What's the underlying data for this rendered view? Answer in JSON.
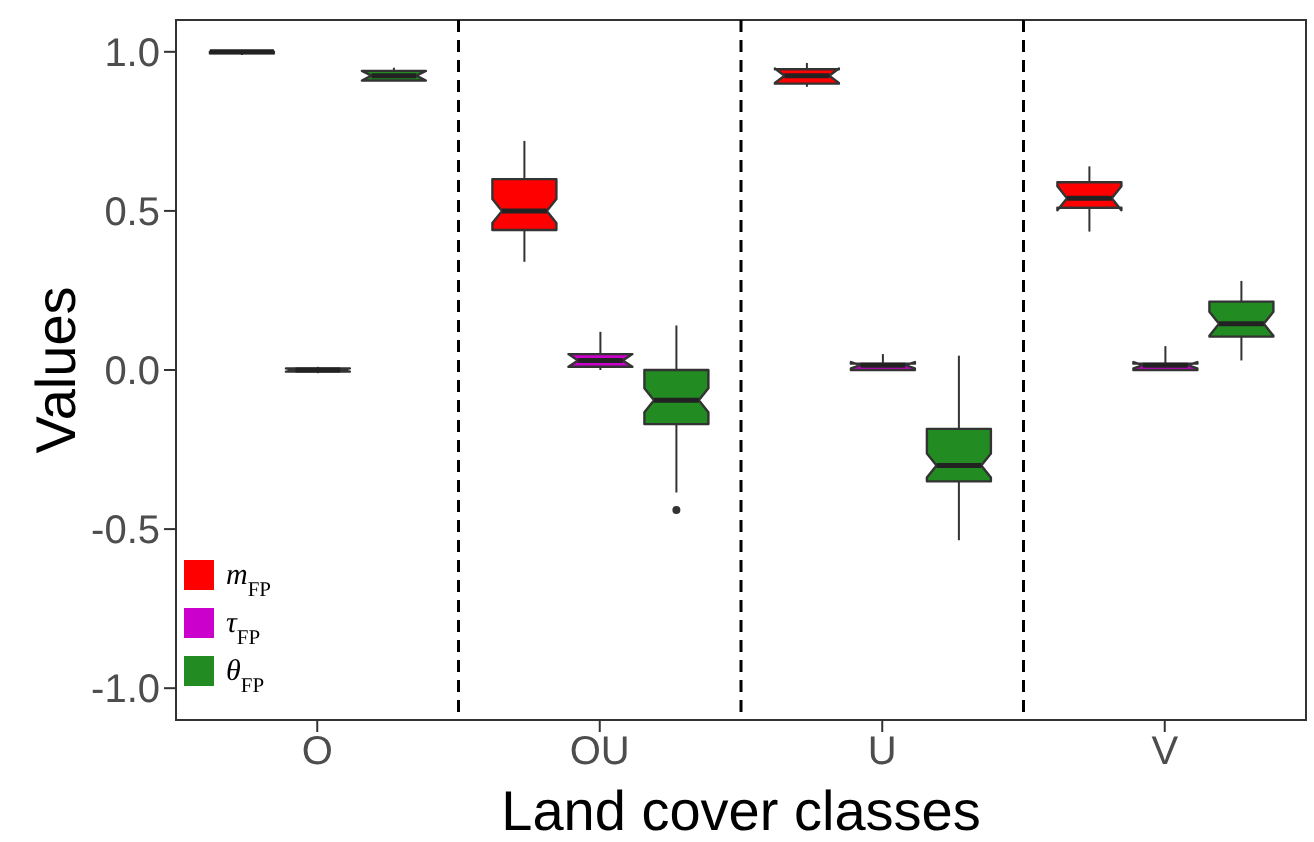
{
  "chart_data": {
    "type": "box",
    "xlabel": "Land cover classes",
    "ylabel": "Values",
    "categories": [
      "O",
      "OU",
      "U",
      "V"
    ],
    "ylim": [
      -1.1,
      1.1
    ],
    "yticks": [
      {
        "value": -1,
        "label": "-1.0"
      },
      {
        "value": -0.5,
        "label": "-0.5"
      },
      {
        "value": 0,
        "label": "0.0"
      },
      {
        "value": 0.5,
        "label": "0.5"
      },
      {
        "value": 1.0,
        "label": "1.0"
      }
    ],
    "grid": false,
    "legend": "bottom left",
    "series": [
      {
        "name": "m$_{FP}$",
        "color": "#ff0000",
        "boxes": [
          {
            "low": 0.99,
            "q1": 0.995,
            "median": 1.0,
            "q3": 1.0,
            "high": 1.0
          },
          {
            "low": 0.34,
            "q1": 0.44,
            "median": 0.5,
            "q3": 0.6,
            "high": 0.72
          },
          {
            "low": 0.89,
            "q1": 0.9,
            "median": 0.925,
            "q3": 0.945,
            "high": 0.965
          },
          {
            "low": 0.435,
            "q1": 0.51,
            "median": 0.54,
            "q3": 0.59,
            "high": 0.64
          }
        ]
      },
      {
        "name": "τ$_{FP}$",
        "color": "#cc00cc",
        "boxes": [
          {
            "low": -0.01,
            "q1": -0.005,
            "median": 0.0,
            "q3": 0.005,
            "high": 0.01
          },
          {
            "low": 0.0,
            "q1": 0.01,
            "median": 0.03,
            "q3": 0.05,
            "high": 0.12
          },
          {
            "low": 0.0,
            "q1": 0.0,
            "median": 0.015,
            "q3": 0.02,
            "high": 0.05
          },
          {
            "low": 0.0,
            "q1": 0.0,
            "median": 0.015,
            "q3": 0.02,
            "high": 0.075
          }
        ]
      },
      {
        "name": "θ$_{FP}$",
        "color": "#228b22",
        "boxes": [
          {
            "low": 0.91,
            "q1": 0.91,
            "median": 0.925,
            "q3": 0.94,
            "high": 0.95
          },
          {
            "low": -0.385,
            "q1": -0.17,
            "median": -0.095,
            "q3": 0.0,
            "high": 0.14,
            "outliers": [
              -0.44
            ]
          },
          {
            "low": -0.535,
            "q1": -0.35,
            "median": -0.3,
            "q3": -0.185,
            "high": 0.045
          },
          {
            "low": 0.03,
            "q1": 0.105,
            "median": 0.145,
            "q3": 0.215,
            "high": 0.28
          }
        ]
      }
    ]
  }
}
